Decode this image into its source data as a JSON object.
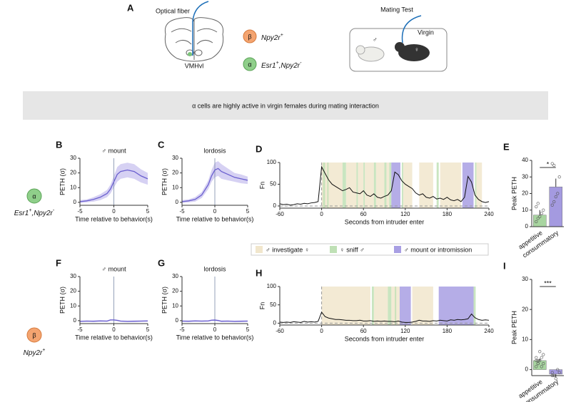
{
  "panel_a": {
    "label": "A",
    "fiber_label": "Optical fiber",
    "region_label": "VMHvl",
    "populations": [
      {
        "symbol": "β",
        "parts": [
          {
            "text": "Npy2r",
            "sup": "+"
          }
        ]
      },
      {
        "symbol": "α",
        "parts": [
          {
            "text": "Esr1",
            "sup": "+"
          },
          {
            "text": ",Npy2r",
            "sup": "-"
          }
        ]
      }
    ],
    "test_title": "Mating Test",
    "male_symbol": "♂",
    "female_label": "Virgin",
    "female_symbol": "♀"
  },
  "banner": "α cells are highly active in virgin females during mating interaction",
  "rows": [
    {
      "symbol": "α",
      "parts": [
        {
          "text": "Esr1",
          "sup": "+"
        },
        {
          "text": ",Npy2r",
          "sup": "-"
        }
      ]
    },
    {
      "symbol": "β",
      "parts": [
        {
          "text": "Npy2r",
          "sup": "+"
        }
      ]
    }
  ],
  "behaviors": [
    {
      "name": "♂ investigate ♀",
      "color": "#f1e6cc"
    },
    {
      "name": "♀ sniff ♂",
      "color": "#bfe0b5"
    },
    {
      "name": "♂ mount or intromission",
      "color": "#a89fe3"
    }
  ],
  "chart_data": [
    {
      "label": "B",
      "type": "line",
      "title": "♂ mount",
      "xlabel": "Time relative to behavior(s)",
      "ylabel": "PETH (σ)",
      "xlim": [
        -5,
        5
      ],
      "ylim": [
        -2,
        30
      ],
      "xticks": [
        -5,
        0,
        5
      ],
      "yticks": [
        0,
        10,
        20,
        30
      ],
      "color": "#6a5fcf",
      "band_color": "#d6d1f3",
      "x": [
        -5,
        -4,
        -3,
        -2,
        -1,
        -0.5,
        0,
        0.5,
        1,
        2,
        3,
        4,
        5
      ],
      "values": [
        0.5,
        1,
        2,
        3.5,
        6,
        9,
        14,
        19,
        21,
        22,
        21,
        18,
        16
      ],
      "error": [
        1,
        1,
        1.5,
        2,
        2.5,
        3,
        4,
        5,
        5,
        5,
        5,
        4.5,
        4
      ]
    },
    {
      "label": "C",
      "type": "line",
      "title": "lordosis",
      "xlabel": "Time relative to behavior(s)",
      "ylabel": "PETH (σ)",
      "xlim": [
        -5,
        5
      ],
      "ylim": [
        -2,
        30
      ],
      "xticks": [
        -5,
        0,
        5
      ],
      "yticks": [
        0,
        10,
        20,
        30
      ],
      "color": "#6a5fcf",
      "band_color": "#d6d1f3",
      "x": [
        -5,
        -4,
        -3,
        -2,
        -1,
        -0.5,
        0,
        0.5,
        1,
        2,
        3,
        4,
        5
      ],
      "values": [
        0.5,
        1,
        2,
        5,
        12,
        18,
        22,
        23,
        21,
        19,
        17,
        16,
        15
      ],
      "error": [
        1,
        1,
        1.5,
        2,
        3,
        4,
        5,
        5,
        5,
        4,
        3,
        3,
        2.5
      ]
    },
    {
      "label": "D",
      "type": "trace",
      "xlabel": "Seconds from intruder enter",
      "ylabel": "Fn",
      "xlim": [
        -60,
        240
      ],
      "ylim": [
        -5,
        100
      ],
      "xticks": [
        -60,
        0,
        60,
        120,
        180,
        240
      ],
      "yticks": [
        0,
        50,
        100
      ],
      "color": "#111111",
      "x": [
        -60,
        -55,
        -50,
        -45,
        -40,
        -35,
        -30,
        -25,
        -20,
        -15,
        -10,
        -5,
        0,
        5,
        10,
        15,
        20,
        25,
        30,
        35,
        40,
        45,
        50,
        55,
        60,
        65,
        70,
        75,
        80,
        85,
        90,
        95,
        100,
        105,
        110,
        115,
        120,
        125,
        130,
        135,
        140,
        145,
        150,
        155,
        160,
        165,
        170,
        175,
        180,
        185,
        190,
        195,
        200,
        205,
        210,
        215,
        220,
        225,
        230,
        235,
        240
      ],
      "values": [
        5,
        3,
        4,
        2,
        3,
        5,
        4,
        6,
        5,
        7,
        8,
        10,
        90,
        75,
        60,
        50,
        45,
        40,
        35,
        38,
        42,
        32,
        30,
        28,
        35,
        25,
        22,
        28,
        20,
        18,
        22,
        25,
        35,
        78,
        72,
        58,
        50,
        45,
        40,
        30,
        25,
        28,
        20,
        18,
        22,
        16,
        18,
        15,
        20,
        14,
        12,
        15,
        10,
        20,
        68,
        55,
        25,
        15,
        10,
        8,
        10
      ],
      "intervals": [
        [
          [
            0,
            30
          ],
          [
            35,
            50
          ],
          [
            52,
            60
          ],
          [
            62,
            75
          ],
          [
            78,
            90
          ],
          [
            93,
            97
          ],
          [
            117,
            130
          ],
          [
            140,
            160
          ],
          [
            170,
            200
          ],
          [
            222,
            230
          ]
        ],
        [
          [
            2,
            5
          ],
          [
            8,
            10
          ],
          [
            30,
            35
          ],
          [
            50,
            52
          ],
          [
            60,
            62
          ],
          [
            75,
            78
          ],
          [
            90,
            93
          ],
          [
            97,
            100
          ],
          [
            115,
            117
          ],
          [
            165,
            168
          ],
          [
            220,
            222
          ]
        ],
        [
          [
            100,
            113
          ],
          [
            202,
            218
          ]
        ]
      ]
    },
    {
      "label": "E",
      "type": "bar",
      "ylabel": "Peak PETH",
      "ylim": [
        0,
        40
      ],
      "yticks": [
        0,
        10,
        20,
        30,
        40
      ],
      "categories": [
        "appetitive",
        "consummatory"
      ],
      "values": [
        7,
        24
      ],
      "error": [
        3,
        5
      ],
      "colors": [
        "#a8d5a0",
        "#a49ae0"
      ],
      "points": [
        [
          3,
          5,
          6,
          8,
          10,
          12,
          14
        ],
        [
          13,
          15,
          18,
          20,
          30,
          38,
          37
        ]
      ],
      "significance": "*"
    },
    {
      "label": "F",
      "type": "line",
      "title": "♂ mount",
      "xlabel": "Time relative to behavior(s)",
      "ylabel": "PETH (σ)",
      "xlim": [
        -5,
        5
      ],
      "ylim": [
        -2,
        30
      ],
      "xticks": [
        -5,
        0,
        5
      ],
      "yticks": [
        0,
        10,
        20,
        30
      ],
      "color": "#6a5fcf",
      "band_color": "#d6d1f3",
      "x": [
        -5,
        -4,
        -3,
        -2,
        -1,
        -0.5,
        0,
        0.5,
        1,
        2,
        3,
        4,
        5
      ],
      "values": [
        -0.5,
        -0.3,
        -0.4,
        -0.2,
        -0.3,
        0.5,
        0.5,
        0.2,
        -0.3,
        -0.5,
        -0.4,
        -0.3,
        -0.2
      ],
      "error": [
        0.5,
        0.5,
        0.5,
        0.5,
        0.5,
        0.5,
        0.5,
        0.5,
        0.5,
        0.5,
        0.5,
        0.5,
        0.5
      ]
    },
    {
      "label": "G",
      "type": "line",
      "title": "lordosis",
      "xlabel": "Time relative to behavior(s)",
      "ylabel": "PETH (σ)",
      "xlim": [
        -5,
        5
      ],
      "ylim": [
        -2,
        30
      ],
      "xticks": [
        -5,
        0,
        5
      ],
      "yticks": [
        0,
        10,
        20,
        30
      ],
      "color": "#6a5fcf",
      "band_color": "#d6d1f3",
      "x": [
        -5,
        -4,
        -3,
        -2,
        -1,
        -0.5,
        0,
        0.5,
        1,
        2,
        3,
        4,
        5
      ],
      "values": [
        -0.3,
        -0.4,
        -0.2,
        -0.3,
        -0.2,
        0.3,
        0.4,
        0.1,
        -0.4,
        -0.3,
        -0.5,
        -0.4,
        -0.3
      ],
      "error": [
        0.5,
        0.5,
        0.5,
        0.5,
        0.5,
        0.5,
        0.5,
        0.5,
        0.5,
        0.5,
        0.5,
        0.5,
        0.5
      ]
    },
    {
      "label": "H",
      "type": "trace",
      "xlabel": "Seconds from intruder enter",
      "ylabel": "Fn",
      "xlim": [
        -60,
        240
      ],
      "ylim": [
        -5,
        100
      ],
      "xticks": [
        -60,
        0,
        60,
        120,
        180,
        240
      ],
      "yticks": [
        0,
        50,
        100
      ],
      "color": "#111111",
      "x": [
        -60,
        -55,
        -50,
        -45,
        -40,
        -35,
        -30,
        -25,
        -20,
        -15,
        -10,
        -5,
        0,
        5,
        10,
        15,
        20,
        25,
        30,
        35,
        40,
        45,
        50,
        55,
        60,
        65,
        70,
        75,
        80,
        85,
        90,
        95,
        100,
        105,
        110,
        115,
        120,
        125,
        130,
        135,
        140,
        145,
        150,
        155,
        160,
        165,
        170,
        175,
        180,
        185,
        190,
        195,
        200,
        205,
        210,
        215,
        220,
        225,
        230,
        235,
        240
      ],
      "values": [
        3,
        2,
        3,
        2,
        4,
        3,
        2,
        5,
        3,
        4,
        3,
        5,
        30,
        18,
        14,
        12,
        10,
        10,
        9,
        8,
        8,
        7,
        7,
        8,
        6,
        6,
        7,
        5,
        6,
        5,
        6,
        5,
        5,
        4,
        6,
        3,
        2,
        2,
        3,
        5,
        8,
        6,
        6,
        5,
        7,
        6,
        8,
        7,
        6,
        9,
        8,
        10,
        9,
        10,
        12,
        25,
        15,
        10,
        8,
        9,
        8
      ],
      "intervals": [
        [
          [
            0,
            70
          ],
          [
            75,
            95
          ],
          [
            100,
            112
          ],
          [
            130,
            160
          ]
        ],
        [
          [
            72,
            75
          ],
          [
            95,
            100
          ],
          [
            105,
            107
          ],
          [
            218,
            221
          ]
        ],
        [
          [
            112,
            128
          ],
          [
            168,
            218
          ]
        ]
      ]
    },
    {
      "label": "I",
      "type": "bar",
      "ylabel": "Peak PETH",
      "ylim": [
        -2,
        30
      ],
      "yticks": [
        0,
        10,
        20,
        30
      ],
      "categories": [
        "appetitive",
        "consummatory"
      ],
      "values": [
        3,
        -1.5
      ],
      "error": [
        0.7,
        1
      ],
      "colors": [
        "#a8d5a0",
        "#a49ae0"
      ],
      "points": [
        [
          1,
          2,
          3,
          4,
          5,
          3,
          2,
          6,
          1,
          2,
          4,
          3
        ],
        [
          -1,
          -2,
          -3,
          0,
          -1,
          -2
        ]
      ],
      "significance": "***"
    }
  ]
}
